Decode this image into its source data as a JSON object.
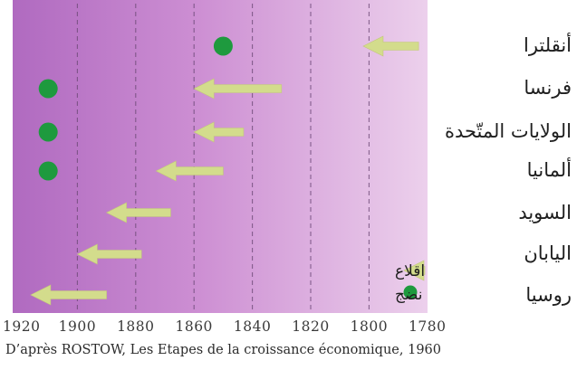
{
  "chart_data": {
    "type": "timeline",
    "x_axis": {
      "ticks": [
        "1920",
        "1900",
        "1880",
        "1860",
        "1840",
        "1820",
        "1800",
        "1780"
      ],
      "reversed": true,
      "range": [
        1780,
        1930
      ]
    },
    "legend": [
      {
        "marker": "arrow",
        "label": "اقلاع"
      },
      {
        "marker": "dot",
        "label": "نضج"
      }
    ],
    "countries": [
      {
        "name": "أنقلترا",
        "takeoff": [
          1783,
          1802
        ],
        "maturity": 1850
      },
      {
        "name": "فرنسا",
        "takeoff": [
          1830,
          1860
        ],
        "maturity": 1910
      },
      {
        "name": "الولايات المتّحدة",
        "takeoff": [
          1843,
          1860
        ],
        "maturity": 1910
      },
      {
        "name": "ألمانيا",
        "takeoff": [
          1850,
          1873
        ],
        "maturity": 1910
      },
      {
        "name": "السويد",
        "takeoff": [
          1868,
          1890
        ],
        "maturity": null
      },
      {
        "name": "اليابان",
        "takeoff": [
          1878,
          1900
        ],
        "maturity": null
      },
      {
        "name": "روسيا",
        "takeoff": [
          1890,
          1916
        ],
        "maturity": null
      }
    ]
  },
  "source": "D’après ROSTOW, Les Etapes de la croissance économique, 1960",
  "colors": {
    "background_left": "#b56fc3",
    "background_right": "#e9c8e9",
    "arrow": "#d3dc8c",
    "dot": "#1e9a3e",
    "gridline": "#6e4a78"
  }
}
